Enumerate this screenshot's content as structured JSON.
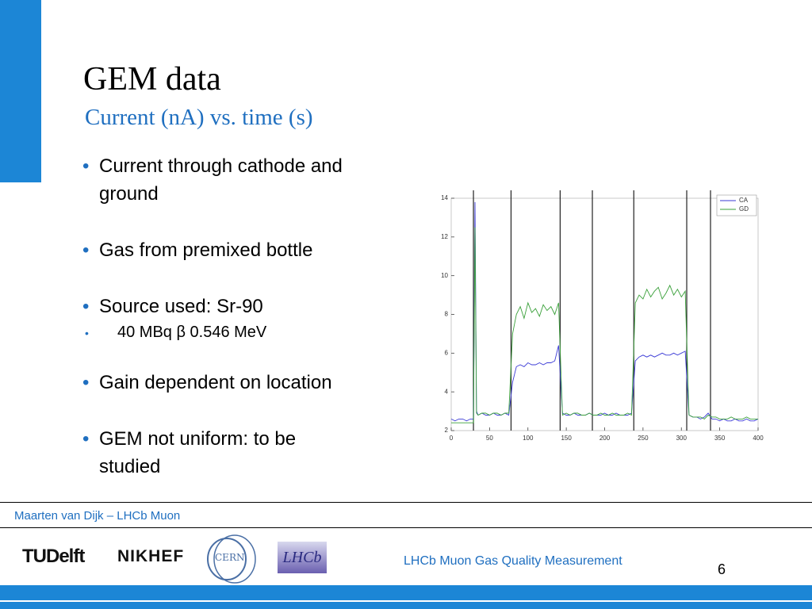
{
  "slide": {
    "title": "GEM data",
    "subtitle": "Current (nA) vs. time (s)",
    "bullets": [
      {
        "text": "Current through cathode and ground"
      },
      {
        "text": "Gas from premixed bottle"
      },
      {
        "text": "Source used:  Sr-90",
        "sub": [
          "40 MBq  β  0.546 MeV"
        ]
      },
      {
        "text": "Gain dependent on location"
      },
      {
        "text": "GEM not uniform: to be studied"
      }
    ],
    "footer_author": "Maarten van Dijk – LHCb Muon",
    "footer_title": "LHCb Muon Gas Quality Measurement",
    "page_number": "6",
    "logos": [
      "TUDelft",
      "NIKHEF",
      "CERN",
      "LHCb"
    ]
  },
  "chart_data": {
    "type": "line",
    "x": [
      0,
      5,
      10,
      15,
      20,
      25,
      29,
      31,
      33,
      35,
      40,
      45,
      50,
      55,
      60,
      65,
      70,
      75,
      80,
      85,
      90,
      95,
      100,
      105,
      110,
      115,
      120,
      125,
      130,
      135,
      140,
      145,
      150,
      155,
      160,
      165,
      170,
      175,
      180,
      185,
      190,
      195,
      200,
      205,
      210,
      215,
      220,
      225,
      230,
      235,
      240,
      245,
      250,
      255,
      260,
      265,
      270,
      275,
      280,
      285,
      290,
      295,
      300,
      305,
      310,
      315,
      320,
      325,
      330,
      335,
      340,
      345,
      350,
      355,
      360,
      365,
      370,
      375,
      380,
      385,
      390,
      395,
      400
    ],
    "series": [
      {
        "name": "CA",
        "color": "#3b3bd6",
        "values": [
          2.6,
          2.5,
          2.6,
          2.6,
          2.5,
          2.6,
          2.6,
          13.8,
          3.0,
          2.8,
          2.9,
          2.8,
          2.8,
          2.9,
          2.8,
          2.8,
          2.9,
          2.8,
          4.5,
          5.3,
          5.4,
          5.3,
          5.5,
          5.4,
          5.4,
          5.5,
          5.4,
          5.5,
          5.5,
          5.6,
          6.4,
          2.9,
          2.8,
          2.8,
          2.9,
          2.8,
          2.8,
          2.8,
          2.9,
          2.8,
          2.8,
          2.8,
          2.9,
          2.8,
          2.8,
          2.9,
          2.8,
          2.8,
          2.8,
          2.9,
          5.6,
          5.8,
          5.9,
          5.8,
          5.9,
          5.8,
          5.9,
          6.0,
          5.9,
          5.9,
          6.0,
          5.9,
          6.0,
          6.1,
          2.8,
          2.7,
          2.7,
          2.6,
          2.7,
          2.9,
          2.6,
          2.6,
          2.5,
          2.6,
          2.5,
          2.5,
          2.6,
          2.5,
          2.5,
          2.6,
          2.5,
          2.5,
          2.6
        ]
      },
      {
        "name": "GD",
        "color": "#3aa03a",
        "values": [
          2.4,
          2.4,
          2.4,
          2.4,
          2.4,
          2.4,
          2.4,
          12.5,
          2.9,
          2.8,
          2.9,
          2.9,
          2.8,
          2.9,
          2.9,
          2.8,
          2.9,
          2.9,
          7.0,
          8.0,
          8.4,
          7.8,
          8.6,
          8.1,
          8.3,
          7.9,
          8.5,
          8.2,
          8.4,
          8.0,
          8.6,
          2.8,
          2.9,
          2.8,
          2.9,
          2.9,
          2.8,
          2.8,
          2.9,
          2.8,
          2.8,
          2.9,
          2.8,
          2.8,
          2.9,
          2.8,
          2.8,
          2.8,
          2.9,
          2.8,
          8.6,
          9.0,
          8.8,
          9.3,
          8.9,
          9.2,
          9.4,
          8.8,
          9.1,
          9.5,
          9.0,
          9.3,
          8.9,
          9.2,
          2.8,
          2.7,
          2.7,
          2.7,
          2.6,
          2.8,
          2.7,
          2.7,
          2.6,
          2.6,
          2.6,
          2.7,
          2.6,
          2.6,
          2.6,
          2.7,
          2.6,
          2.6,
          2.6
        ]
      }
    ],
    "vlines": [
      29,
      78,
      142,
      184,
      238,
      307,
      338
    ],
    "xlim": [
      0,
      400
    ],
    "xticks": [
      0,
      50,
      100,
      150,
      200,
      250,
      300,
      350,
      400
    ],
    "ylim": [
      2,
      14
    ],
    "yticks": [
      2,
      4,
      6,
      8,
      10,
      12,
      14
    ],
    "legend": "upper right"
  }
}
